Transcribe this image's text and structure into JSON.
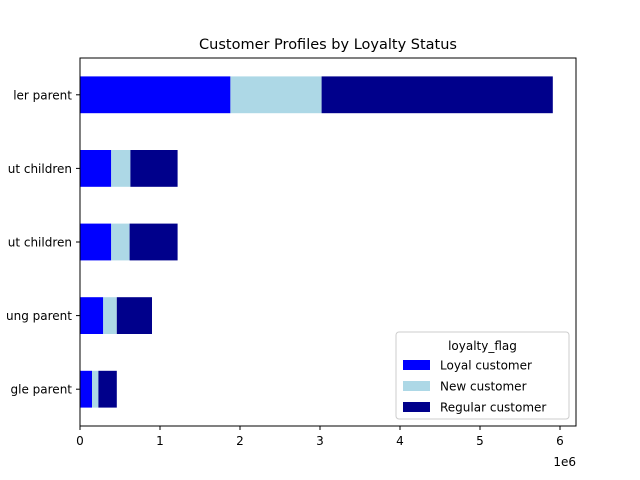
{
  "chart_data": {
    "type": "bar",
    "orientation": "horizontal",
    "stacked": true,
    "title": "Customer Profiles by Loyalty Status",
    "xlabel": "",
    "ylabel": "",
    "x_scale_label": "1e6",
    "xlim": [
      0,
      6200000
    ],
    "xticks": [
      0,
      1000000,
      2000000,
      3000000,
      4000000,
      5000000,
      6000000
    ],
    "xtick_labels": [
      "0",
      "1",
      "2",
      "3",
      "4",
      "5",
      "6"
    ],
    "categories_visible": [
      "ler parent",
      "ut children",
      "ut children",
      "ung parent",
      "gle parent"
    ],
    "series": [
      {
        "name": "Loyal customer",
        "color": "#0000ff",
        "values": [
          1880000,
          390000,
          390000,
          290000,
          150000
        ]
      },
      {
        "name": "New customer",
        "color": "#add8e6",
        "values": [
          1140000,
          240000,
          230000,
          170000,
          80000
        ]
      },
      {
        "name": "Regular customer",
        "color": "#00008b",
        "values": [
          2890000,
          590000,
          600000,
          440000,
          230000
        ]
      }
    ],
    "legend": {
      "title": "loyalty_flag",
      "position": "lower right"
    },
    "grid": false
  }
}
